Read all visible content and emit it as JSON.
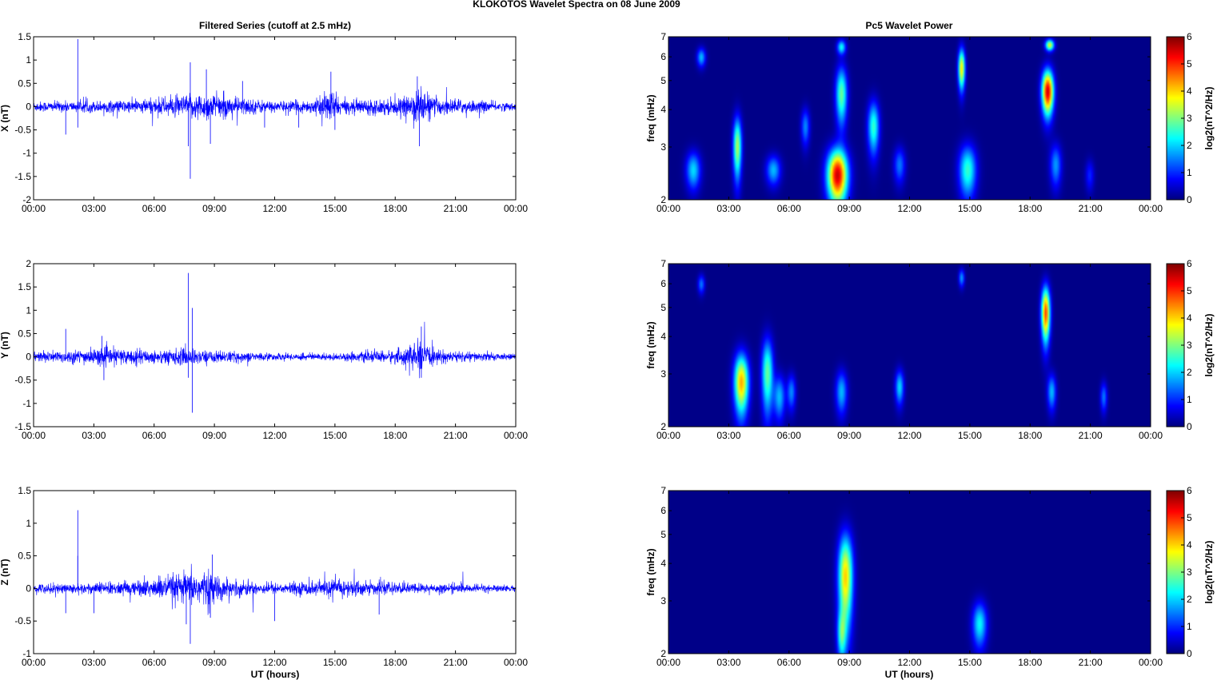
{
  "figure": {
    "title": "KLOKOTOS Wavelet Spectra on 08 June      2009"
  },
  "colors": {
    "trace": "#0000ff",
    "axis": "#000000",
    "colormap": "jet"
  },
  "chart_data": [
    {
      "type": "line",
      "title": "Filtered Series (cutoff at 2.5 mHz)",
      "xlabel": "",
      "ylabel": "X (nT)",
      "xlim": [
        0,
        24
      ],
      "ylim": [
        -2,
        1.5
      ],
      "xticks": [
        "00:00",
        "03:00",
        "06:00",
        "09:00",
        "12:00",
        "15:00",
        "18:00",
        "21:00",
        "00:00"
      ],
      "yticks": [
        "-2",
        "-1.5",
        "-1",
        "-0.5",
        "0",
        "0.5",
        "1",
        "1.5"
      ],
      "ytick_values": [
        -2,
        -1.5,
        -1,
        -0.5,
        0,
        0.5,
        1,
        1.5
      ],
      "noise_envelope": [
        [
          0,
          0.12
        ],
        [
          2,
          0.12
        ],
        [
          5,
          0.15
        ],
        [
          7.5,
          0.25
        ],
        [
          8.5,
          0.32
        ],
        [
          9.5,
          0.25
        ],
        [
          12,
          0.12
        ],
        [
          14,
          0.15
        ],
        [
          14.9,
          0.4
        ],
        [
          15.3,
          0.15
        ],
        [
          18.5,
          0.2
        ],
        [
          19.2,
          0.45
        ],
        [
          20,
          0.2
        ],
        [
          24,
          0.08
        ]
      ],
      "spikes": [
        [
          2.2,
          1.45
        ],
        [
          2.2,
          -0.45
        ],
        [
          1.6,
          -0.6
        ],
        [
          7.8,
          -1.55
        ],
        [
          7.8,
          0.95
        ],
        [
          7.7,
          -0.85
        ],
        [
          8.6,
          0.8
        ],
        [
          8.8,
          -0.8
        ],
        [
          14.8,
          0.75
        ],
        [
          15,
          -0.5
        ],
        [
          19.1,
          0.65
        ],
        [
          19.2,
          -0.85
        ],
        [
          10.4,
          0.55
        ],
        [
          11.5,
          -0.45
        ],
        [
          13.2,
          -0.45
        ]
      ]
    },
    {
      "type": "line",
      "title": "",
      "xlabel": "",
      "ylabel": "Y (nT)",
      "xlim": [
        0,
        24
      ],
      "ylim": [
        -1.5,
        2
      ],
      "xticks": [
        "00:00",
        "03:00",
        "06:00",
        "09:00",
        "12:00",
        "15:00",
        "18:00",
        "21:00",
        "00:00"
      ],
      "yticks": [
        "-1.5",
        "-1",
        "-0.5",
        "0",
        "0.5",
        "1",
        "1.5",
        "2"
      ],
      "ytick_values": [
        -1.5,
        -1,
        -0.5,
        0,
        0.5,
        1,
        1.5,
        2
      ],
      "noise_envelope": [
        [
          0,
          0.12
        ],
        [
          2,
          0.15
        ],
        [
          3.5,
          0.2
        ],
        [
          6,
          0.15
        ],
        [
          7.7,
          0.2
        ],
        [
          8.5,
          0.15
        ],
        [
          10,
          0.12
        ],
        [
          12,
          0.08
        ],
        [
          15,
          0.08
        ],
        [
          18,
          0.15
        ],
        [
          19.3,
          0.35
        ],
        [
          20,
          0.15
        ],
        [
          24,
          0.06
        ]
      ],
      "spikes": [
        [
          7.7,
          1.8
        ],
        [
          7.9,
          1.05
        ],
        [
          7.9,
          -1.2
        ],
        [
          7.7,
          -0.45
        ],
        [
          1.6,
          0.6
        ],
        [
          3.5,
          -0.5
        ],
        [
          3.4,
          0.45
        ],
        [
          19.3,
          0.65
        ],
        [
          19.3,
          -0.45
        ]
      ]
    },
    {
      "type": "line",
      "title": "",
      "xlabel": "UT (hours)",
      "ylabel": "Z (nT)",
      "xlim": [
        0,
        24
      ],
      "ylim": [
        -1,
        1.5
      ],
      "xticks": [
        "00:00",
        "03:00",
        "06:00",
        "09:00",
        "12:00",
        "15:00",
        "18:00",
        "21:00",
        "00:00"
      ],
      "yticks": [
        "-1",
        "-0.5",
        "0",
        "0.5",
        "1",
        "1.5"
      ],
      "ytick_values": [
        -1,
        -0.5,
        0,
        0.5,
        1,
        1.5
      ],
      "noise_envelope": [
        [
          0,
          0.08
        ],
        [
          2,
          0.08
        ],
        [
          5,
          0.12
        ],
        [
          8.5,
          0.3
        ],
        [
          9.5,
          0.15
        ],
        [
          12,
          0.08
        ],
        [
          15.5,
          0.15
        ],
        [
          17,
          0.1
        ],
        [
          24,
          0.05
        ]
      ],
      "spikes": [
        [
          2.2,
          1.2
        ],
        [
          2.2,
          0.5
        ],
        [
          7.8,
          -0.85
        ],
        [
          7.6,
          -0.55
        ],
        [
          8.9,
          0.52
        ],
        [
          8.8,
          -0.45
        ],
        [
          12,
          -0.5
        ],
        [
          3,
          -0.38
        ],
        [
          1.6,
          -0.38
        ],
        [
          17.2,
          -0.4
        ]
      ]
    },
    {
      "type": "heatmap",
      "title": "Pc5 Wavelet Power",
      "xlabel": "",
      "ylabel": "freq (mHz)",
      "colorbar_label": "log2(nT^2/Hz)",
      "xlim": [
        0,
        24
      ],
      "ylim": [
        2,
        7
      ],
      "yscale": "log",
      "clim": [
        0,
        6
      ],
      "xticks": [
        "00:00",
        "03:00",
        "06:00",
        "09:00",
        "12:00",
        "15:00",
        "18:00",
        "21:00",
        "00:00"
      ],
      "yticks": [
        "2",
        "3",
        "4",
        "5",
        "6",
        "7"
      ],
      "ytick_values": [
        2,
        3,
        4,
        5,
        6,
        7
      ],
      "cticks": [
        "0",
        "1",
        "2",
        "3",
        "4",
        "5",
        "6"
      ],
      "blobs": [
        [
          1.2,
          2.5,
          0.25,
          0.25,
          2
        ],
        [
          1.6,
          6.0,
          0.15,
          0.3,
          1.8
        ],
        [
          3.4,
          3.0,
          0.15,
          0.5,
          3.2
        ],
        [
          5.2,
          2.5,
          0.25,
          0.2,
          1.8
        ],
        [
          6.8,
          3.5,
          0.15,
          0.35,
          1.5
        ],
        [
          8.4,
          2.4,
          0.35,
          0.35,
          5.5
        ],
        [
          8.6,
          4.5,
          0.2,
          0.7,
          2.8
        ],
        [
          8.6,
          6.5,
          0.15,
          0.25,
          2.2
        ],
        [
          10.2,
          3.5,
          0.2,
          0.5,
          2.5
        ],
        [
          11.5,
          2.6,
          0.2,
          0.25,
          1.4
        ],
        [
          14.6,
          5.5,
          0.12,
          0.6,
          3.8
        ],
        [
          14.9,
          2.5,
          0.3,
          0.35,
          2.5
        ],
        [
          18.9,
          4.6,
          0.2,
          0.55,
          5.5
        ],
        [
          19.0,
          6.6,
          0.15,
          0.2,
          3.5
        ],
        [
          19.3,
          2.6,
          0.2,
          0.3,
          1.6
        ],
        [
          21.0,
          2.4,
          0.15,
          0.2,
          0.9
        ]
      ]
    },
    {
      "type": "heatmap",
      "title": "",
      "xlabel": "",
      "ylabel": "freq (mHz)",
      "colorbar_label": "log2(nT^2/Hz)",
      "xlim": [
        0,
        24
      ],
      "ylim": [
        2,
        7
      ],
      "yscale": "log",
      "clim": [
        0,
        6
      ],
      "xticks": [
        "00:00",
        "03:00",
        "06:00",
        "09:00",
        "12:00",
        "15:00",
        "18:00",
        "21:00",
        "00:00"
      ],
      "yticks": [
        "2",
        "3",
        "4",
        "5",
        "6",
        "7"
      ],
      "ytick_values": [
        2,
        3,
        4,
        5,
        6,
        7
      ],
      "cticks": [
        "0",
        "1",
        "2",
        "3",
        "4",
        "5",
        "6"
      ],
      "blobs": [
        [
          1.6,
          6.0,
          0.12,
          0.3,
          1.4
        ],
        [
          3.6,
          2.8,
          0.25,
          0.45,
          4.2
        ],
        [
          4.9,
          3.0,
          0.2,
          0.6,
          2.8
        ],
        [
          5.5,
          2.5,
          0.2,
          0.3,
          1.8
        ],
        [
          6.1,
          2.6,
          0.15,
          0.25,
          1.5
        ],
        [
          8.6,
          2.6,
          0.2,
          0.3,
          1.8
        ],
        [
          11.5,
          2.7,
          0.15,
          0.25,
          2.0
        ],
        [
          14.6,
          6.3,
          0.1,
          0.3,
          1.6
        ],
        [
          18.8,
          4.8,
          0.15,
          0.7,
          4.8
        ],
        [
          19.1,
          2.6,
          0.15,
          0.25,
          1.8
        ],
        [
          21.7,
          2.5,
          0.12,
          0.2,
          1.4
        ]
      ]
    },
    {
      "type": "heatmap",
      "title": "",
      "xlabel": "UT (hours)",
      "ylabel": "freq (mHz)",
      "colorbar_label": "log2(nT^2/Hz)",
      "xlim": [
        0,
        24
      ],
      "ylim": [
        2,
        7
      ],
      "yscale": "log",
      "clim": [
        0,
        6
      ],
      "xticks": [
        "00:00",
        "03:00",
        "06:00",
        "09:00",
        "12:00",
        "15:00",
        "18:00",
        "21:00",
        "00:00"
      ],
      "yticks": [
        "2",
        "3",
        "4",
        "5",
        "6",
        "7"
      ],
      "ytick_values": [
        2,
        3,
        4,
        5,
        6,
        7
      ],
      "cticks": [
        "0",
        "1",
        "2",
        "3",
        "4",
        "5",
        "6"
      ],
      "blobs": [
        [
          8.8,
          3.6,
          0.25,
          0.9,
          4.0
        ],
        [
          8.6,
          2.3,
          0.15,
          0.3,
          2.0
        ],
        [
          15.5,
          2.5,
          0.25,
          0.3,
          2.2
        ]
      ]
    }
  ]
}
